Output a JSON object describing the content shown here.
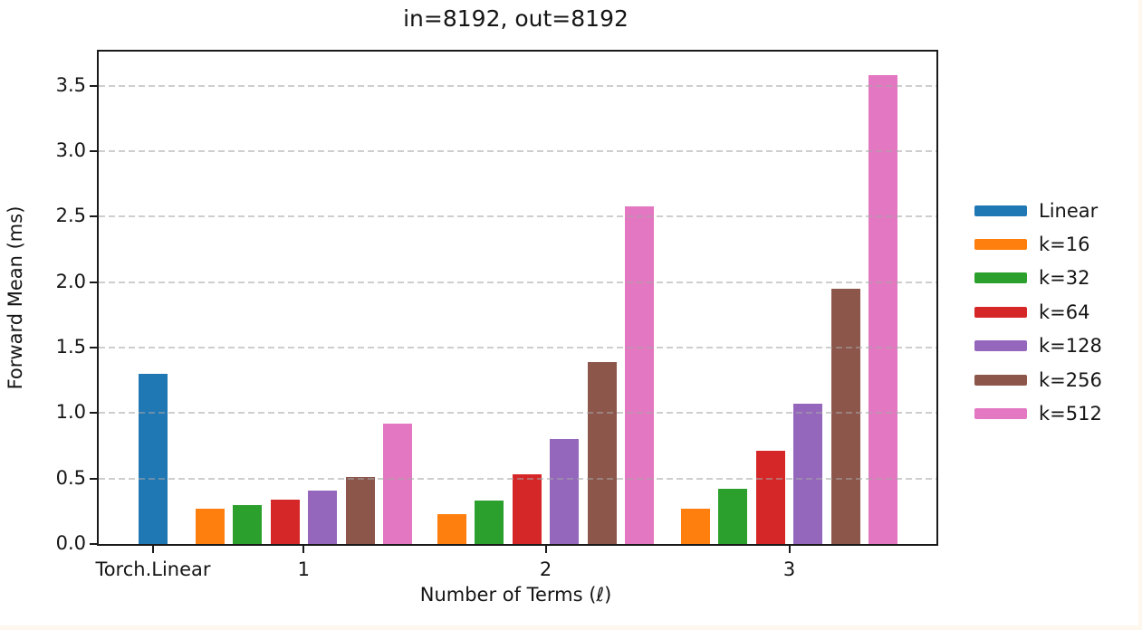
{
  "page": {
    "background_color": "#ffffff",
    "margin_color": "#fdf7ee",
    "text_color": "#151515"
  },
  "chart_data": {
    "type": "bar",
    "title": "in=8192, out=8192",
    "xlabel": "Number of Terms (ℓ)",
    "ylabel": "Forward Mean (ms)",
    "categories": [
      "Torch.Linear",
      "1",
      "2",
      "3"
    ],
    "series": [
      {
        "name": "Linear",
        "color": "#1f77b4",
        "values": [
          1.3,
          null,
          null,
          null
        ]
      },
      {
        "name": "k=16",
        "color": "#ff7f0e",
        "values": [
          null,
          0.27,
          0.23,
          0.27
        ]
      },
      {
        "name": "k=32",
        "color": "#2ca02c",
        "values": [
          null,
          0.3,
          0.33,
          0.42
        ]
      },
      {
        "name": "k=64",
        "color": "#d62728",
        "values": [
          null,
          0.34,
          0.53,
          0.71
        ]
      },
      {
        "name": "k=128",
        "color": "#9467bd",
        "values": [
          null,
          0.41,
          0.8,
          1.07
        ]
      },
      {
        "name": "k=256",
        "color": "#8c564b",
        "values": [
          null,
          0.51,
          1.39,
          1.95
        ]
      },
      {
        "name": "k=512",
        "color": "#e377c2",
        "values": [
          null,
          0.92,
          2.58,
          3.58
        ]
      }
    ],
    "yticks": [
      0.0,
      0.5,
      1.0,
      1.5,
      2.0,
      2.5,
      3.0,
      3.5
    ],
    "ytick_format_decimals": 1,
    "ylim": [
      0,
      3.76
    ],
    "grid": "horizontal-dashed",
    "grid_above_bars": true,
    "legend_position": "right-outside",
    "legend_frame": false
  }
}
